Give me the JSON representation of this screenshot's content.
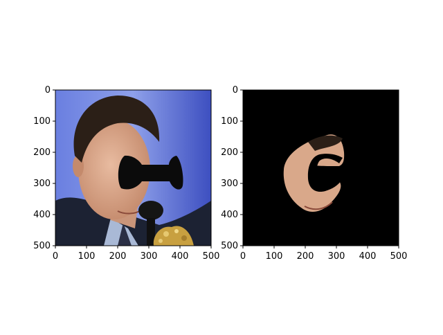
{
  "figure": {
    "panels": [
      {
        "id": "left",
        "content": "face photo with black bow-tie shaped mask over center",
        "x_ticks": [
          "0",
          "100",
          "200",
          "300",
          "400",
          "500"
        ],
        "y_ticks": [
          "0",
          "100",
          "200",
          "300",
          "400",
          "500"
        ],
        "xlim": [
          0,
          500
        ],
        "ylim": [
          500,
          0
        ]
      },
      {
        "id": "right",
        "content": "black background showing only masked face region with C-shaped cutout",
        "x_ticks": [
          "0",
          "100",
          "200",
          "300",
          "400",
          "500"
        ],
        "y_ticks": [
          "0",
          "100",
          "200",
          "300",
          "400",
          "500"
        ],
        "xlim": [
          0,
          500
        ],
        "ylim": [
          500,
          0
        ]
      }
    ],
    "colors": {
      "mask": "#0b0b0b",
      "background_blue": "#5a6fd8",
      "skin": "#d9a88a",
      "hair": "#2b1f17",
      "suit": "#1c2233",
      "shirt": "#a9b9d6",
      "gold": "#c8a040"
    }
  }
}
